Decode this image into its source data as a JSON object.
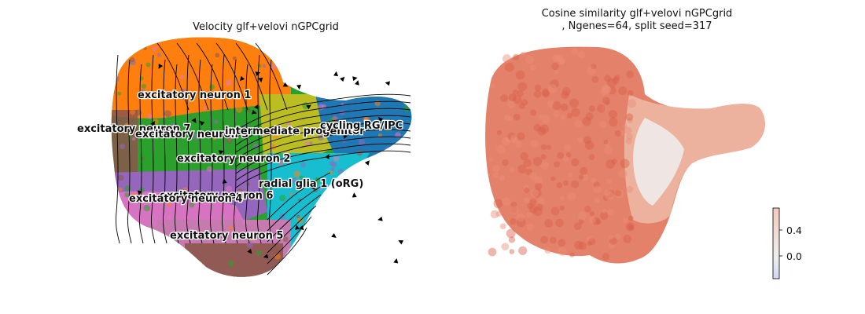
{
  "chart_data": [
    {
      "type": "scatter",
      "title": "Velocity glf+velovi nGPCgrid",
      "overlay": "velocity streamlines",
      "axes": "off",
      "clusters": [
        {
          "name": "excitatory neuron 1",
          "color": "#ff7f0e"
        },
        {
          "name": "excitatory neuron 7",
          "color": "#8c564b"
        },
        {
          "name": "excitatory neuron 3",
          "color": "#2ca02c"
        },
        {
          "name": "intermediate progenitor",
          "color": "#bcbd22"
        },
        {
          "name": "cycling RG/IPC",
          "color": "#1f77b4"
        },
        {
          "name": "excitatory neuron 2",
          "color": "#2ca02c"
        },
        {
          "name": "radial glia 1 (oRG)",
          "color": "#17becf"
        },
        {
          "name": "excitatory neuron 6",
          "color": "#9467bd"
        },
        {
          "name": "excitatory neuron 4",
          "color": "#e377c2"
        },
        {
          "name": "excitatory neuron 5",
          "color": "#8c564b"
        }
      ]
    },
    {
      "type": "scatter",
      "title": "Cosine similarity glf+velovi nGPCgrid\n, Ngenes=64, split seed=317",
      "axes": "off",
      "colorbar": {
        "colormap": "coolwarm",
        "ticks": [
          "0.4",
          "0.0"
        ],
        "range": [
          -0.3,
          0.75
        ]
      }
    }
  ]
}
